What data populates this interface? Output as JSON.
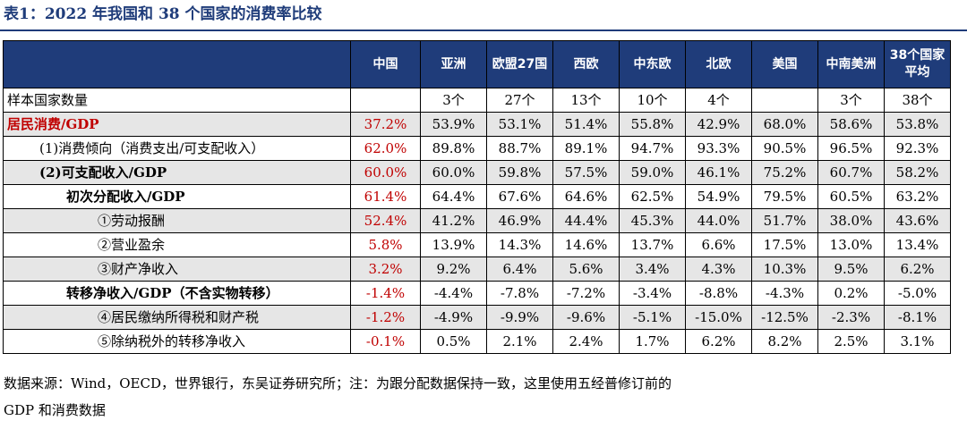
{
  "title": "表1：2022 年我国和 38 个国家的消费率比较",
  "columns": [
    "中国",
    "亚洲",
    "欧盟27国",
    "西欧",
    "中东欧",
    "北欧",
    "美国",
    "中南美洲",
    "38个国家平均"
  ],
  "rows": [
    {
      "label": "样本国家数量",
      "values": [
        "",
        "3个",
        "27个",
        "13个",
        "10个",
        "4个",
        "",
        "3个",
        "38个"
      ],
      "style": "plain",
      "indent": 0
    },
    {
      "label": "居民消费/GDP",
      "values": [
        "37.2%",
        "53.9%",
        "53.1%",
        "51.4%",
        "55.8%",
        "42.9%",
        "68.0%",
        "58.6%",
        "53.8%"
      ],
      "style": "shade bold redlabel",
      "indent": 0
    },
    {
      "label": "(1)消费倾向（消费支出/可支配收入）",
      "values": [
        "62.0%",
        "89.8%",
        "88.7%",
        "89.1%",
        "94.7%",
        "93.3%",
        "90.5%",
        "96.5%",
        "92.3%"
      ],
      "style": "plain",
      "indent": 1
    },
    {
      "label": "(2)可支配收入/GDP",
      "values": [
        "60.0%",
        "60.0%",
        "59.8%",
        "57.5%",
        "59.0%",
        "46.1%",
        "75.2%",
        "60.7%",
        "58.2%"
      ],
      "style": "shade bold",
      "indent": 1
    },
    {
      "label": "初次分配收入/GDP",
      "values": [
        "61.4%",
        "64.4%",
        "67.6%",
        "64.6%",
        "62.5%",
        "54.9%",
        "79.5%",
        "60.5%",
        "63.2%"
      ],
      "style": "bold",
      "indent": 2
    },
    {
      "label": "①劳动报酬",
      "values": [
        "52.4%",
        "41.2%",
        "46.9%",
        "44.4%",
        "45.3%",
        "44.0%",
        "51.7%",
        "38.0%",
        "43.6%"
      ],
      "style": "shade",
      "indent": 3
    },
    {
      "label": "②营业盈余",
      "values": [
        "5.8%",
        "13.9%",
        "14.3%",
        "14.6%",
        "13.7%",
        "6.6%",
        "17.5%",
        "13.0%",
        "13.4%"
      ],
      "style": "plain",
      "indent": 3
    },
    {
      "label": "③财产净收入",
      "values": [
        "3.2%",
        "9.2%",
        "6.4%",
        "5.6%",
        "3.4%",
        "4.3%",
        "10.3%",
        "9.5%",
        "6.2%"
      ],
      "style": "shade",
      "indent": 3
    },
    {
      "label": "转移净收入/GDP（不含实物转移）",
      "values": [
        "-1.4%",
        "-4.4%",
        "-7.8%",
        "-7.2%",
        "-3.4%",
        "-8.8%",
        "-4.3%",
        "0.2%",
        "-5.0%"
      ],
      "style": "bold",
      "indent": 2
    },
    {
      "label": "④居民缴纳所得税和财产税",
      "values": [
        "-1.2%",
        "-4.9%",
        "-9.9%",
        "-9.6%",
        "-5.1%",
        "-15.0%",
        "-12.5%",
        "-2.3%",
        "-8.1%"
      ],
      "style": "shade",
      "indent": 3
    },
    {
      "label": "⑤除纳税外的转移净收入",
      "values": [
        "-0.1%",
        "0.5%",
        "2.1%",
        "2.4%",
        "1.7%",
        "6.2%",
        "8.2%",
        "2.5%",
        "3.1%"
      ],
      "style": "plain",
      "indent": 3
    }
  ],
  "footer_line1": "数据来源：Wind，OECD，世界银行，东吴证券研究所；注：为跟分配数据保持一致，这里使用五经普修订前的",
  "footer_line2": "GDP 和消费数据",
  "colors": {
    "header_bg": "#1f3c7a",
    "highlight_red": "#c00000",
    "row_shade": "#e6e6e6"
  }
}
